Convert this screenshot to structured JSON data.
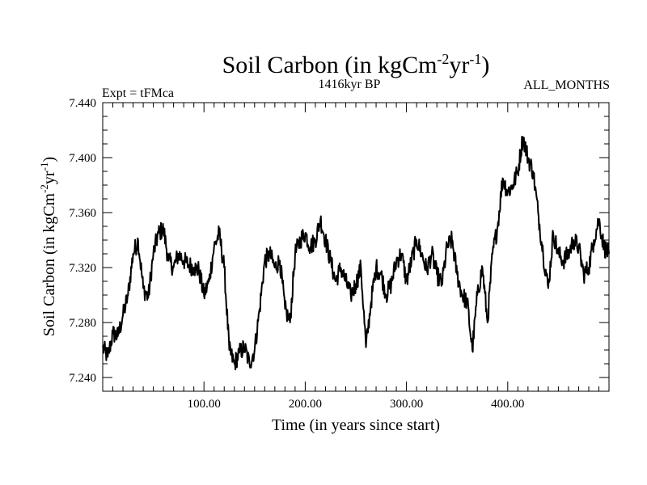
{
  "chart_data": {
    "type": "line",
    "title_main": "Soil Carbon (in kgCm",
    "title_sup1": "-2",
    "title_mid": "yr",
    "title_sup2": "-1",
    "title_end": ")",
    "subtitle_left": "Expt = tFMca",
    "subtitle_center": "1416kyr BP",
    "subtitle_right": "ALL_MONTHS",
    "xlabel": "Time (in years since start)",
    "ylabel_main": "Soil Carbon (in kgCm",
    "ylabel_sup1": "-2",
    "ylabel_mid": "yr",
    "ylabel_sup2": "-1",
    "ylabel_end": ")",
    "xlim": [
      0,
      500
    ],
    "ylim": [
      7.23,
      7.44
    ],
    "xticks": [
      100,
      200,
      300,
      400
    ],
    "xtick_labels": [
      "100.00",
      "200.00",
      "300.00",
      "400.00"
    ],
    "yticks": [
      7.24,
      7.28,
      7.32,
      7.36,
      7.4,
      7.44
    ],
    "ytick_labels": [
      "7.240",
      "7.280",
      "7.320",
      "7.360",
      "7.400",
      "7.440"
    ],
    "series": [
      {
        "name": "Soil Carbon",
        "x": [
          0,
          5,
          10,
          15,
          20,
          25,
          30,
          35,
          40,
          45,
          50,
          55,
          60,
          65,
          70,
          75,
          80,
          85,
          90,
          95,
          100,
          105,
          110,
          115,
          120,
          125,
          130,
          135,
          140,
          145,
          150,
          155,
          160,
          165,
          170,
          175,
          180,
          185,
          190,
          195,
          200,
          205,
          210,
          215,
          220,
          225,
          230,
          235,
          240,
          245,
          250,
          255,
          260,
          265,
          270,
          275,
          280,
          285,
          290,
          295,
          300,
          305,
          310,
          315,
          320,
          325,
          330,
          335,
          340,
          345,
          350,
          355,
          360,
          365,
          370,
          375,
          380,
          385,
          390,
          395,
          400,
          405,
          410,
          415,
          420,
          425,
          430,
          435,
          440,
          445,
          450,
          455,
          460,
          465,
          470,
          475,
          480,
          485,
          490,
          495,
          500
        ],
        "values": [
          7.262,
          7.255,
          7.272,
          7.27,
          7.285,
          7.3,
          7.33,
          7.34,
          7.305,
          7.298,
          7.33,
          7.345,
          7.348,
          7.325,
          7.32,
          7.33,
          7.325,
          7.322,
          7.32,
          7.318,
          7.3,
          7.31,
          7.335,
          7.345,
          7.32,
          7.26,
          7.25,
          7.258,
          7.262,
          7.25,
          7.26,
          7.29,
          7.325,
          7.33,
          7.32,
          7.325,
          7.29,
          7.28,
          7.33,
          7.34,
          7.345,
          7.335,
          7.34,
          7.355,
          7.34,
          7.325,
          7.31,
          7.32,
          7.31,
          7.3,
          7.308,
          7.32,
          7.262,
          7.295,
          7.32,
          7.315,
          7.3,
          7.308,
          7.325,
          7.33,
          7.31,
          7.325,
          7.34,
          7.33,
          7.318,
          7.33,
          7.315,
          7.308,
          7.335,
          7.34,
          7.315,
          7.3,
          7.295,
          7.26,
          7.3,
          7.32,
          7.28,
          7.33,
          7.35,
          7.385,
          7.375,
          7.38,
          7.39,
          7.415,
          7.4,
          7.39,
          7.36,
          7.33,
          7.305,
          7.345,
          7.33,
          7.325,
          7.33,
          7.34,
          7.335,
          7.315,
          7.32,
          7.34,
          7.355,
          7.335,
          7.33
        ]
      }
    ]
  }
}
